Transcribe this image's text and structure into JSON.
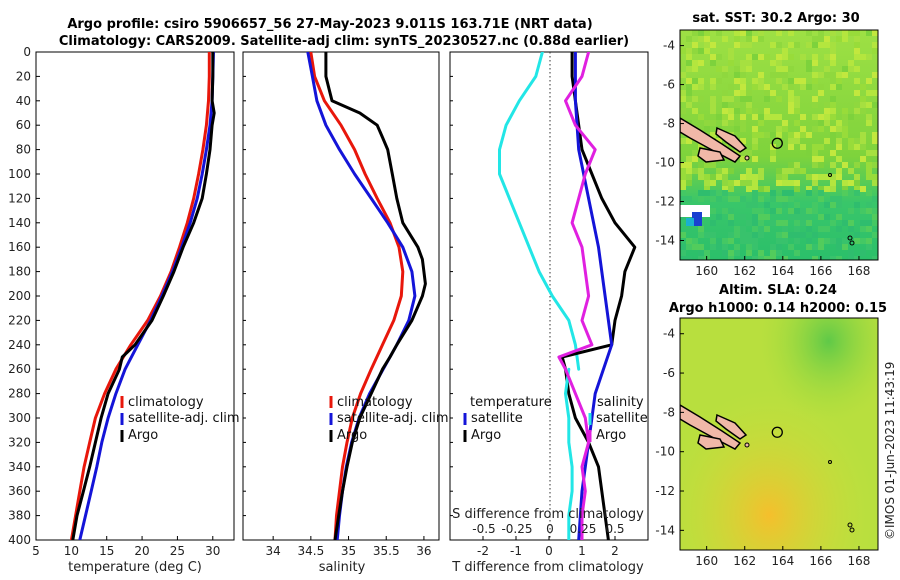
{
  "title": {
    "line1": "Argo profile: csiro 5906657_56 27-May-2023 9.011S 163.71E (NRT data)",
    "line2": "Climatology: CARS2009. Satellite-adj clim: synTS_20230527.nc (0.88d earlier)"
  },
  "colors": {
    "climatology": "#e8170b",
    "satellite": "#1414d8",
    "argo": "#000000",
    "temp_diff": "#22e6e6",
    "sal_diff": "#e020e0"
  },
  "chart_data": [
    {
      "id": "temperature",
      "type": "line",
      "xlabel": "temperature (deg C)",
      "ylabel": "",
      "xlim": [
        5,
        33
      ],
      "ylim": [
        400,
        0
      ],
      "xticks": [
        5,
        10,
        15,
        20,
        25,
        30
      ],
      "yticks": [
        0,
        20,
        40,
        60,
        80,
        100,
        120,
        140,
        160,
        180,
        200,
        220,
        240,
        260,
        280,
        300,
        320,
        340,
        360,
        380,
        400
      ],
      "legend": [
        "climatology",
        "satellite-adj. clim",
        "Argo"
      ],
      "series": [
        {
          "name": "climatology",
          "depth": [
            0,
            20,
            40,
            60,
            80,
            100,
            120,
            140,
            160,
            180,
            200,
            220,
            240,
            260,
            280,
            300,
            320,
            340,
            360,
            380,
            400
          ],
          "values": [
            29.5,
            29.5,
            29.4,
            29.1,
            28.6,
            28.0,
            27.3,
            26.4,
            25.3,
            24.1,
            22.6,
            20.8,
            18.4,
            16.3,
            14.7,
            13.4,
            12.6,
            11.8,
            11.2,
            10.6,
            10.0
          ]
        },
        {
          "name": "satellite-adj. clim",
          "depth": [
            0,
            20,
            40,
            60,
            80,
            100,
            120,
            140,
            160,
            180,
            200,
            220,
            240,
            260,
            280,
            300,
            320,
            340,
            360,
            380,
            400
          ],
          "values": [
            30.1,
            30.0,
            29.9,
            29.6,
            29.1,
            28.5,
            27.8,
            26.8,
            25.6,
            24.3,
            22.8,
            21.2,
            19.4,
            17.6,
            16.3,
            15.2,
            14.3,
            13.6,
            12.8,
            12.0,
            11.2
          ]
        },
        {
          "name": "Argo",
          "depth": [
            0,
            20,
            40,
            50,
            60,
            80,
            100,
            120,
            140,
            160,
            180,
            200,
            220,
            240,
            250,
            260,
            280,
            300,
            320,
            340,
            360,
            380,
            400
          ],
          "values": [
            30.0,
            30.0,
            29.9,
            30.2,
            29.9,
            29.6,
            29.1,
            28.5,
            27.3,
            25.8,
            24.5,
            23.0,
            21.4,
            19.0,
            17.2,
            16.8,
            15.2,
            14.2,
            13.4,
            12.6,
            11.7,
            10.8,
            10.2
          ]
        }
      ]
    },
    {
      "id": "salinity",
      "type": "line",
      "xlabel": "salinity",
      "xlim": [
        33.6,
        36.2
      ],
      "ylim": [
        400,
        0
      ],
      "xticks": [
        34,
        34.5,
        35,
        35.5,
        36
      ],
      "legend": [
        "climatology",
        "satellite-adj. clim",
        "Argo"
      ],
      "series": [
        {
          "name": "climatology",
          "depth": [
            0,
            20,
            40,
            60,
            80,
            100,
            120,
            140,
            160,
            180,
            200,
            220,
            240,
            260,
            280,
            300,
            320,
            340,
            360,
            380,
            400
          ],
          "values": [
            34.5,
            34.55,
            34.68,
            34.9,
            35.08,
            35.22,
            35.38,
            35.55,
            35.67,
            35.72,
            35.7,
            35.6,
            35.45,
            35.3,
            35.16,
            35.05,
            34.98,
            34.92,
            34.88,
            34.84,
            34.82
          ]
        },
        {
          "name": "satellite-adj. clim",
          "depth": [
            0,
            20,
            40,
            60,
            80,
            100,
            120,
            140,
            160,
            180,
            200,
            220,
            240,
            260,
            280,
            300,
            320,
            340,
            360,
            380,
            400
          ],
          "values": [
            34.46,
            34.52,
            34.58,
            34.7,
            34.88,
            35.08,
            35.3,
            35.52,
            35.72,
            35.84,
            35.88,
            35.8,
            35.64,
            35.46,
            35.28,
            35.14,
            35.04,
            34.97,
            34.92,
            34.88,
            34.85
          ]
        },
        {
          "name": "Argo",
          "depth": [
            0,
            20,
            40,
            50,
            60,
            70,
            80,
            100,
            120,
            140,
            160,
            170,
            180,
            190,
            200,
            220,
            240,
            250,
            260,
            280,
            300,
            320,
            340,
            360,
            380,
            400
          ],
          "values": [
            34.7,
            34.7,
            34.78,
            35.15,
            35.38,
            35.45,
            35.52,
            35.58,
            35.64,
            35.72,
            35.92,
            35.98,
            36.0,
            36.02,
            35.98,
            35.84,
            35.64,
            35.55,
            35.45,
            35.3,
            35.15,
            35.05,
            34.98,
            34.92,
            34.87,
            34.82
          ]
        }
      ]
    },
    {
      "id": "difference",
      "type": "line",
      "xlabel": "T difference from climatology",
      "xlabel2": "S difference from climatology",
      "xlim": [
        -3,
        3
      ],
      "ylim": [
        400,
        0
      ],
      "xticks": [
        -2,
        -1,
        0,
        1,
        2
      ],
      "xticks_s": [
        "-0.5",
        "-0.25",
        "0",
        "0.25",
        "0.5"
      ],
      "legend_t": [
        "temperature",
        "satellite",
        "Argo"
      ],
      "legend_s": [
        "salinity",
        "satellite",
        "Argo"
      ],
      "series": [
        {
          "name": "temperature satellite",
          "depth": [
            0,
            20,
            40,
            60,
            80,
            100,
            120,
            140,
            160,
            180,
            200,
            220,
            240,
            260
          ],
          "values": [
            -0.2,
            -0.4,
            -0.9,
            -1.3,
            -1.5,
            -1.5,
            -1.2,
            -0.9,
            -0.6,
            -0.3,
            0.1,
            0.6,
            0.8,
            0.9
          ]
        },
        {
          "name": "temperature Argo",
          "depth": [
            0,
            20,
            40,
            60,
            80,
            100,
            120,
            140,
            160,
            180,
            200,
            220,
            240,
            250,
            260,
            280,
            300,
            320,
            340,
            360,
            380,
            400
          ],
          "values": [
            0.7,
            0.7,
            0.8,
            0.9,
            1.0,
            1.3,
            1.6,
            2.0,
            2.6,
            2.3,
            2.2,
            2.0,
            1.9,
            0.4,
            0.5,
            0.6,
            0.8,
            1.2,
            1.5,
            1.6,
            1.7,
            1.8
          ]
        },
        {
          "name": "temperature Argo-satellite",
          "depth": [
            0,
            40,
            80,
            120,
            160,
            200,
            240,
            280,
            320,
            360,
            400
          ],
          "values": [
            0.8,
            0.8,
            0.9,
            1.2,
            1.5,
            1.7,
            1.9,
            1.4,
            1.2,
            1.0,
            0.9
          ]
        },
        {
          "name": "salinity satellite",
          "depth": [
            260,
            280,
            300,
            320,
            340,
            360,
            380,
            400
          ],
          "values": [
            0.6,
            0.5,
            0.6,
            0.6,
            0.7,
            0.7,
            0.6,
            0.6
          ]
        },
        {
          "name": "salinity Argo",
          "depth": [
            0,
            20,
            40,
            60,
            80,
            100,
            120,
            140,
            160,
            180,
            200,
            220,
            240,
            250,
            260,
            280,
            300,
            320,
            340,
            360,
            380,
            400
          ],
          "values": [
            1.2,
            1.0,
            0.5,
            0.8,
            1.4,
            1.1,
            0.9,
            0.7,
            1.0,
            1.1,
            1.2,
            1.0,
            1.3,
            0.3,
            0.5,
            0.8,
            1.1,
            1.2,
            1.0,
            1.1,
            1.0,
            1.0
          ]
        }
      ]
    },
    {
      "id": "sst_map",
      "type": "heatmap",
      "title": "sat. SST: 30.2 Argo: 30",
      "xticks": [
        160,
        162,
        164,
        166,
        168
      ],
      "yticks": [
        -4,
        -6,
        -8,
        -10,
        -12,
        -14
      ],
      "xlim": [
        158.6,
        169.0
      ],
      "ylim": [
        -15.0,
        -3.2
      ],
      "profile_position": {
        "lon": 163.71,
        "lat": -9.011
      },
      "sst": 30.2,
      "argo": 30
    },
    {
      "id": "sla_map",
      "type": "heatmap",
      "title": "Altim. SLA: 0.24",
      "subtitle": "Argo h1000: 0.14 h2000: 0.15",
      "xticks": [
        160,
        162,
        164,
        166,
        168
      ],
      "yticks": [
        -4,
        -6,
        -8,
        -10,
        -12,
        -14
      ],
      "xlim": [
        158.6,
        169.0
      ],
      "ylim": [
        -15.0,
        -3.2
      ],
      "profile_position": {
        "lon": 163.71,
        "lat": -9.011
      }
    }
  ],
  "credit": "©IMOS 01-Jun-2023 11:43:19"
}
